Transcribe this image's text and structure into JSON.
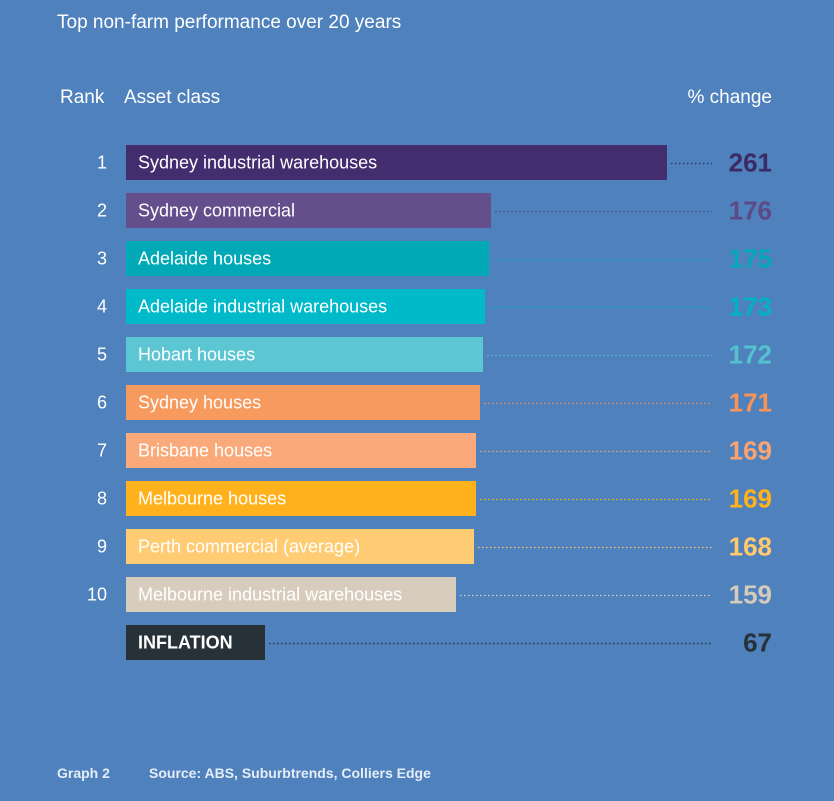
{
  "title": "Top non-farm performance over 20 years",
  "headers": {
    "rank": "Rank",
    "asset": "Asset class",
    "change": "% change"
  },
  "footer": {
    "graph": "Graph 2",
    "source": "Source: ABS, Suburbtrends, Colliers Edge"
  },
  "chart_data": {
    "type": "bar",
    "orientation": "horizontal",
    "title": "Top non-farm performance over 20 years",
    "rows": [
      {
        "rank": "1",
        "label": "Sydney industrial warehouses",
        "value": 261,
        "color": "#432d6e",
        "text_color": "#ffffff",
        "value_color": "#3b2a63"
      },
      {
        "rank": "2",
        "label": "Sydney commercial",
        "value": 176,
        "color": "#644f8c",
        "text_color": "#ffffff",
        "value_color": "#5d4a85"
      },
      {
        "rank": "3",
        "label": "Adelaide houses",
        "value": 175,
        "color": "#00a9b5",
        "text_color": "#ffffff",
        "value_color": "#00a9b5"
      },
      {
        "rank": "4",
        "label": "Adelaide industrial warehouses",
        "value": 173,
        "color": "#00b9c9",
        "text_color": "#ffffff",
        "value_color": "#00b3c3"
      },
      {
        "rank": "5",
        "label": "Hobart houses",
        "value": 172,
        "color": "#5cc6d3",
        "text_color": "#ffffff",
        "value_color": "#55c1cf"
      },
      {
        "rank": "6",
        "label": "Sydney houses",
        "value": 171,
        "color": "#f79a5d",
        "text_color": "#ffffff",
        "value_color": "#f7945a"
      },
      {
        "rank": "7",
        "label": "Brisbane houses",
        "value": 169,
        "color": "#f9a97a",
        "text_color": "#ffffff",
        "value_color": "#f9a372"
      },
      {
        "rank": "8",
        "label": "Melbourne houses",
        "value": 169,
        "color": "#ffb21c",
        "text_color": "#ffffff",
        "value_color": "#ffb21c"
      },
      {
        "rank": "9",
        "label": "Perth commercial (average)",
        "value": 168,
        "color": "#ffcc73",
        "text_color": "#ffffff",
        "value_color": "#ffc96c"
      },
      {
        "rank": "10",
        "label": "Melbourne industrial warehouses",
        "value": 159,
        "color": "#d8cdbd",
        "text_color": "#ffffff",
        "value_color": "#d5cbbd"
      },
      {
        "rank": "",
        "label": "INFLATION",
        "value": 67,
        "color": "#263238",
        "text_color": "#ffffff",
        "value_color": "#263238"
      }
    ],
    "xlabel": "",
    "ylabel": "",
    "grid": false,
    "legend": "none"
  }
}
